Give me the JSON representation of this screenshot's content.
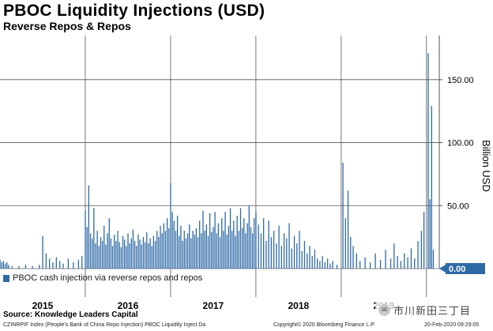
{
  "header": {
    "title": "PBOC Liquidity Injections (USD)",
    "subtitle": "Reverse Repos & Repos"
  },
  "legend": {
    "label": "PBOC cash injection via reverse repos and repos",
    "color": "#2e6aa6"
  },
  "last_value_label": "0.00",
  "footer": {
    "source": "Source: Knowledge Leaders Capital",
    "index_line": "CZINRPIF Index (People's Bank of China Repo Injection) PBOC Liquidity Inject  Da",
    "copyright": "Copyright© 2020 Bloomberg Finance L.P.",
    "timestamp": "20-Feb-2020 09:29:05"
  },
  "watermark": {
    "text": "市川新田三丁目",
    "icon": "wechat-icon"
  },
  "chart_data": {
    "type": "bar",
    "title": "PBOC Liquidity Injections (USD)",
    "subtitle": "Reverse Repos & Repos",
    "ylabel": "Billion USD",
    "ylim": [
      0,
      185
    ],
    "yticks": [
      {
        "label": "150.00",
        "value": 150
      },
      {
        "label": "100.00",
        "value": 100
      },
      {
        "label": "50.00",
        "value": 50
      }
    ],
    "xlim": [
      2015.0,
      2020.15
    ],
    "xticks": [
      {
        "label": "2015",
        "value": 2015.5
      },
      {
        "label": "2016",
        "value": 2016.5
      },
      {
        "label": "2017",
        "value": 2017.5
      },
      {
        "label": "2018",
        "value": 2018.5
      },
      {
        "label": "2019",
        "value": 2019.5
      }
    ],
    "grid": true,
    "bar_color": "#2e6aa6",
    "series": [
      {
        "name": "PBOC cash injection via reverse repos and repos",
        "points": [
          {
            "x": 2015.0,
            "y": 7
          },
          {
            "x": 2015.02,
            "y": 5
          },
          {
            "x": 2015.04,
            "y": 6
          },
          {
            "x": 2015.06,
            "y": 4
          },
          {
            "x": 2015.08,
            "y": 5
          },
          {
            "x": 2015.1,
            "y": 3
          },
          {
            "x": 2015.14,
            "y": 2
          },
          {
            "x": 2015.22,
            "y": 2
          },
          {
            "x": 2015.3,
            "y": 3
          },
          {
            "x": 2015.38,
            "y": 2
          },
          {
            "x": 2015.46,
            "y": 3
          },
          {
            "x": 2015.5,
            "y": 26
          },
          {
            "x": 2015.54,
            "y": 12
          },
          {
            "x": 2015.58,
            "y": 8
          },
          {
            "x": 2015.62,
            "y": 5
          },
          {
            "x": 2015.66,
            "y": 9
          },
          {
            "x": 2015.7,
            "y": 6
          },
          {
            "x": 2015.74,
            "y": 4
          },
          {
            "x": 2015.8,
            "y": 8
          },
          {
            "x": 2015.86,
            "y": 5
          },
          {
            "x": 2015.92,
            "y": 7
          },
          {
            "x": 2015.96,
            "y": 10
          },
          {
            "x": 2016.0,
            "y": 46
          },
          {
            "x": 2016.02,
            "y": 33
          },
          {
            "x": 2016.04,
            "y": 66
          },
          {
            "x": 2016.06,
            "y": 28
          },
          {
            "x": 2016.08,
            "y": 24
          },
          {
            "x": 2016.1,
            "y": 48
          },
          {
            "x": 2016.12,
            "y": 20
          },
          {
            "x": 2016.14,
            "y": 30
          },
          {
            "x": 2016.16,
            "y": 18
          },
          {
            "x": 2016.18,
            "y": 25
          },
          {
            "x": 2016.2,
            "y": 22
          },
          {
            "x": 2016.22,
            "y": 34
          },
          {
            "x": 2016.24,
            "y": 19
          },
          {
            "x": 2016.26,
            "y": 28
          },
          {
            "x": 2016.28,
            "y": 40
          },
          {
            "x": 2016.3,
            "y": 24
          },
          {
            "x": 2016.32,
            "y": 18
          },
          {
            "x": 2016.34,
            "y": 27
          },
          {
            "x": 2016.36,
            "y": 22
          },
          {
            "x": 2016.38,
            "y": 30
          },
          {
            "x": 2016.4,
            "y": 21
          },
          {
            "x": 2016.42,
            "y": 17
          },
          {
            "x": 2016.44,
            "y": 26
          },
          {
            "x": 2016.46,
            "y": 23
          },
          {
            "x": 2016.48,
            "y": 18
          },
          {
            "x": 2016.5,
            "y": 28
          },
          {
            "x": 2016.52,
            "y": 20
          },
          {
            "x": 2016.54,
            "y": 24
          },
          {
            "x": 2016.56,
            "y": 31
          },
          {
            "x": 2016.58,
            "y": 22
          },
          {
            "x": 2016.6,
            "y": 18
          },
          {
            "x": 2016.62,
            "y": 27
          },
          {
            "x": 2016.64,
            "y": 23
          },
          {
            "x": 2016.66,
            "y": 19
          },
          {
            "x": 2016.68,
            "y": 25
          },
          {
            "x": 2016.7,
            "y": 21
          },
          {
            "x": 2016.72,
            "y": 29
          },
          {
            "x": 2016.74,
            "y": 20
          },
          {
            "x": 2016.76,
            "y": 24
          },
          {
            "x": 2016.78,
            "y": 18
          },
          {
            "x": 2016.8,
            "y": 26
          },
          {
            "x": 2016.82,
            "y": 22
          },
          {
            "x": 2016.84,
            "y": 30
          },
          {
            "x": 2016.86,
            "y": 25
          },
          {
            "x": 2016.88,
            "y": 34
          },
          {
            "x": 2016.9,
            "y": 28
          },
          {
            "x": 2016.92,
            "y": 36
          },
          {
            "x": 2016.94,
            "y": 30
          },
          {
            "x": 2016.96,
            "y": 40
          },
          {
            "x": 2016.98,
            "y": 32
          },
          {
            "x": 2017.0,
            "y": 68
          },
          {
            "x": 2017.02,
            "y": 45
          },
          {
            "x": 2017.04,
            "y": 38
          },
          {
            "x": 2017.06,
            "y": 30
          },
          {
            "x": 2017.08,
            "y": 42
          },
          {
            "x": 2017.1,
            "y": 26
          },
          {
            "x": 2017.12,
            "y": 34
          },
          {
            "x": 2017.14,
            "y": 22
          },
          {
            "x": 2017.16,
            "y": 30
          },
          {
            "x": 2017.18,
            "y": 24
          },
          {
            "x": 2017.2,
            "y": 28
          },
          {
            "x": 2017.22,
            "y": 35
          },
          {
            "x": 2017.24,
            "y": 24
          },
          {
            "x": 2017.26,
            "y": 30
          },
          {
            "x": 2017.28,
            "y": 27
          },
          {
            "x": 2017.3,
            "y": 32
          },
          {
            "x": 2017.32,
            "y": 25
          },
          {
            "x": 2017.34,
            "y": 38
          },
          {
            "x": 2017.36,
            "y": 28
          },
          {
            "x": 2017.38,
            "y": 46
          },
          {
            "x": 2017.4,
            "y": 30
          },
          {
            "x": 2017.42,
            "y": 35
          },
          {
            "x": 2017.44,
            "y": 26
          },
          {
            "x": 2017.46,
            "y": 44
          },
          {
            "x": 2017.48,
            "y": 29
          },
          {
            "x": 2017.5,
            "y": 33
          },
          {
            "x": 2017.52,
            "y": 45
          },
          {
            "x": 2017.54,
            "y": 28
          },
          {
            "x": 2017.56,
            "y": 36
          },
          {
            "x": 2017.58,
            "y": 25
          },
          {
            "x": 2017.6,
            "y": 40
          },
          {
            "x": 2017.62,
            "y": 30
          },
          {
            "x": 2017.64,
            "y": 45
          },
          {
            "x": 2017.66,
            "y": 27
          },
          {
            "x": 2017.68,
            "y": 34
          },
          {
            "x": 2017.7,
            "y": 48
          },
          {
            "x": 2017.72,
            "y": 30
          },
          {
            "x": 2017.74,
            "y": 38
          },
          {
            "x": 2017.76,
            "y": 26
          },
          {
            "x": 2017.78,
            "y": 42
          },
          {
            "x": 2017.8,
            "y": 30
          },
          {
            "x": 2017.82,
            "y": 48
          },
          {
            "x": 2017.84,
            "y": 32
          },
          {
            "x": 2017.86,
            "y": 40
          },
          {
            "x": 2017.88,
            "y": 28
          },
          {
            "x": 2017.9,
            "y": 36
          },
          {
            "x": 2017.92,
            "y": 50
          },
          {
            "x": 2017.94,
            "y": 33
          },
          {
            "x": 2017.96,
            "y": 28
          },
          {
            "x": 2017.98,
            "y": 40
          },
          {
            "x": 2018.0,
            "y": 45
          },
          {
            "x": 2018.03,
            "y": 35
          },
          {
            "x": 2018.06,
            "y": 28
          },
          {
            "x": 2018.09,
            "y": 40
          },
          {
            "x": 2018.12,
            "y": 22
          },
          {
            "x": 2018.15,
            "y": 38
          },
          {
            "x": 2018.18,
            "y": 25
          },
          {
            "x": 2018.21,
            "y": 30
          },
          {
            "x": 2018.24,
            "y": 20
          },
          {
            "x": 2018.27,
            "y": 34
          },
          {
            "x": 2018.3,
            "y": 18
          },
          {
            "x": 2018.33,
            "y": 28
          },
          {
            "x": 2018.36,
            "y": 24
          },
          {
            "x": 2018.39,
            "y": 36
          },
          {
            "x": 2018.42,
            "y": 16
          },
          {
            "x": 2018.45,
            "y": 26
          },
          {
            "x": 2018.48,
            "y": 20
          },
          {
            "x": 2018.51,
            "y": 30
          },
          {
            "x": 2018.54,
            "y": 14
          },
          {
            "x": 2018.57,
            "y": 22
          },
          {
            "x": 2018.6,
            "y": 12
          },
          {
            "x": 2018.63,
            "y": 18
          },
          {
            "x": 2018.66,
            "y": 10
          },
          {
            "x": 2018.69,
            "y": 15
          },
          {
            "x": 2018.72,
            "y": 8
          },
          {
            "x": 2018.75,
            "y": 6
          },
          {
            "x": 2018.78,
            "y": 10
          },
          {
            "x": 2018.81,
            "y": 5
          },
          {
            "x": 2018.84,
            "y": 8
          },
          {
            "x": 2018.87,
            "y": 4
          },
          {
            "x": 2018.9,
            "y": 6
          },
          {
            "x": 2018.95,
            "y": 3
          },
          {
            "x": 2019.02,
            "y": 84
          },
          {
            "x": 2019.05,
            "y": 40
          },
          {
            "x": 2019.08,
            "y": 62
          },
          {
            "x": 2019.11,
            "y": 25
          },
          {
            "x": 2019.14,
            "y": 18
          },
          {
            "x": 2019.18,
            "y": 12
          },
          {
            "x": 2019.22,
            "y": 6
          },
          {
            "x": 2019.28,
            "y": 9
          },
          {
            "x": 2019.34,
            "y": 5
          },
          {
            "x": 2019.4,
            "y": 12
          },
          {
            "x": 2019.46,
            "y": 7
          },
          {
            "x": 2019.52,
            "y": 15
          },
          {
            "x": 2019.58,
            "y": 8
          },
          {
            "x": 2019.62,
            "y": 20
          },
          {
            "x": 2019.66,
            "y": 10
          },
          {
            "x": 2019.7,
            "y": 6
          },
          {
            "x": 2019.74,
            "y": 12
          },
          {
            "x": 2019.78,
            "y": 9
          },
          {
            "x": 2019.82,
            "y": 16
          },
          {
            "x": 2019.86,
            "y": 8
          },
          {
            "x": 2019.9,
            "y": 22
          },
          {
            "x": 2019.94,
            "y": 30
          },
          {
            "x": 2019.97,
            "y": 45
          },
          {
            "x": 2020.02,
            "y": 171
          },
          {
            "x": 2020.04,
            "y": 55
          },
          {
            "x": 2020.06,
            "y": 129
          },
          {
            "x": 2020.08,
            "y": 15
          }
        ]
      }
    ]
  }
}
